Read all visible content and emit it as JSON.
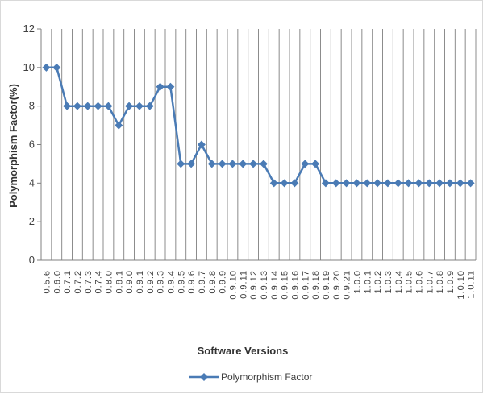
{
  "chart_data": {
    "type": "line",
    "xlabel": "Software Versions",
    "ylabel": "Polymorphism Factor(%)",
    "ylim": [
      0,
      12
    ],
    "yticks": [
      0,
      2,
      4,
      6,
      8,
      10,
      12
    ],
    "grid": "vertical",
    "legend_position": "bottom",
    "color": "#4a7bb5",
    "marker": "diamond",
    "categories": [
      "0.5.6",
      "0.6.0",
      "0.7.1",
      "0.7.2",
      "0.7.3",
      "0.7.4",
      "0.8.0",
      "0.8.1",
      "0.9.0",
      "0.9.1",
      "0.9.2",
      "0.9.3",
      "0.9.4",
      "0.9.5",
      "0.9.6",
      "0.9.7",
      "0.9.8",
      "0.9.9",
      "0.9.10",
      "0.9.11",
      "0.9.12",
      "0.9.13",
      "0.9.14",
      "0.9.15",
      "0.9.16",
      "0.9.17",
      "0.9.18",
      "0.9.19",
      "0.9.20",
      "0.9.21",
      "1.0.0",
      "1.0.1",
      "1.0.2",
      "1.0.3",
      "1.0.4",
      "1.0.5",
      "1.0.6",
      "1.0.7",
      "1.0.8",
      "1.0.9",
      "1.0.10",
      "1.0.11"
    ],
    "series": [
      {
        "name": "Polymorphism Factor",
        "values": [
          10,
          10,
          8,
          8,
          8,
          8,
          8,
          7,
          8,
          8,
          8,
          9,
          9,
          5,
          5,
          6,
          5,
          5,
          5,
          5,
          5,
          5,
          4,
          4,
          4,
          5,
          5,
          4,
          4,
          4,
          4,
          4,
          4,
          4,
          4,
          4,
          4,
          4,
          4,
          4,
          4,
          4
        ]
      }
    ]
  }
}
